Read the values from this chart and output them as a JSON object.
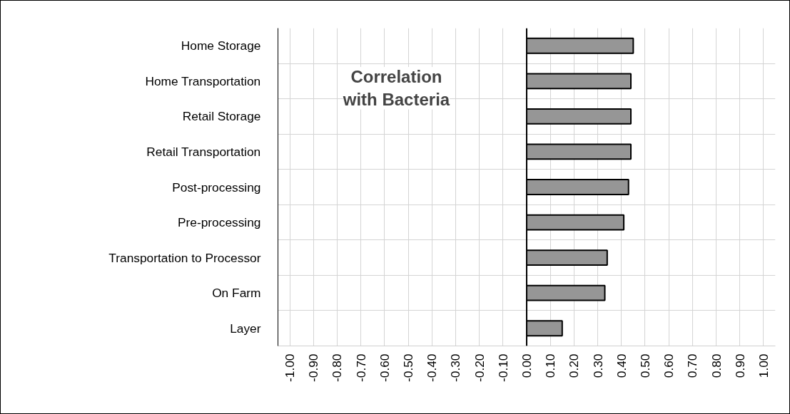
{
  "chart_data": {
    "type": "bar",
    "orientation": "horizontal",
    "title": "Correlation\nwith Bacteria",
    "categories": [
      "Home Storage",
      "Home Transportation",
      "Retail Storage",
      "Retail Transportation",
      "Post-processing",
      "Pre-processing",
      "Transportation to Processor",
      "On Farm",
      "Layer"
    ],
    "values": [
      0.45,
      0.44,
      0.44,
      0.44,
      0.43,
      0.41,
      0.34,
      0.33,
      0.15
    ],
    "color": "#969696",
    "xlim": [
      -1.05,
      1.05
    ],
    "xticks": [
      {
        "value": -1,
        "label": "-1.00"
      },
      {
        "value": -0.9,
        "label": "-0.90"
      },
      {
        "value": -0.8,
        "label": "-0.80"
      },
      {
        "value": -0.7,
        "label": "-0.70"
      },
      {
        "value": -0.6,
        "label": "-0.60"
      },
      {
        "value": -0.5,
        "label": "-0.50"
      },
      {
        "value": -0.4,
        "label": "-0.40"
      },
      {
        "value": -0.3,
        "label": "-0.30"
      },
      {
        "value": -0.2,
        "label": "-0.20"
      },
      {
        "value": -0.1,
        "label": "-0.10"
      },
      {
        "value": 0,
        "label": "0.00"
      },
      {
        "value": 0.1,
        "label": "0.10"
      },
      {
        "value": 0.2,
        "label": "0.20"
      },
      {
        "value": 0.3,
        "label": "0.30"
      },
      {
        "value": 0.4,
        "label": "0.40"
      },
      {
        "value": 0.5,
        "label": "0.50"
      },
      {
        "value": 0.6,
        "label": "0.60"
      },
      {
        "value": 0.7,
        "label": "0.70"
      },
      {
        "value": 0.8,
        "label": "0.80"
      },
      {
        "value": 0.9,
        "label": "0.90"
      },
      {
        "value": 1,
        "label": "1.00"
      }
    ],
    "grid": true
  }
}
